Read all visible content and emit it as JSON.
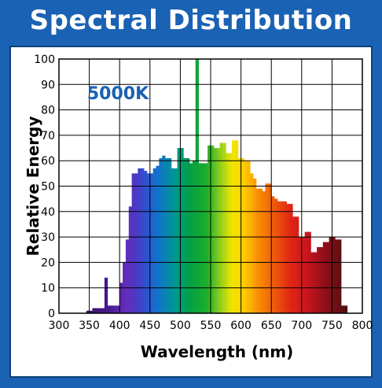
{
  "header": {
    "title": "Spectral Distribution"
  },
  "colors": {
    "frame": "#1a62b3",
    "annotation": "#1a62b3",
    "grid": "#000000"
  },
  "chart_data": {
    "type": "bar",
    "title": "Spectral Distribution",
    "annotation": "5000K",
    "xlabel": "Wavelength (nm)",
    "ylabel": "Relative Energy",
    "xlim": [
      300,
      800
    ],
    "ylim": [
      0,
      100
    ],
    "xticks": [
      300,
      350,
      400,
      450,
      500,
      550,
      600,
      650,
      700,
      750,
      800
    ],
    "yticks": [
      0,
      10,
      20,
      30,
      40,
      50,
      60,
      70,
      80,
      90,
      100
    ],
    "grid": true,
    "bin_width_nm": 5,
    "x": [
      345,
      350,
      355,
      360,
      365,
      370,
      375,
      380,
      385,
      390,
      395,
      400,
      405,
      410,
      415,
      420,
      425,
      430,
      435,
      440,
      445,
      450,
      455,
      460,
      465,
      470,
      475,
      480,
      485,
      490,
      495,
      500,
      505,
      510,
      515,
      520,
      525,
      530,
      535,
      540,
      545,
      550,
      555,
      560,
      565,
      570,
      575,
      580,
      585,
      590,
      595,
      600,
      605,
      610,
      615,
      620,
      625,
      630,
      635,
      640,
      645,
      650,
      655,
      660,
      665,
      670,
      675,
      680,
      685,
      690,
      695,
      700,
      705,
      710,
      715,
      720,
      725,
      730,
      735,
      740,
      745,
      750,
      755,
      760,
      765,
      770,
      775,
      780
    ],
    "values": [
      1,
      1,
      2,
      2,
      2,
      2,
      14,
      3,
      3,
      3,
      3,
      12,
      20,
      29,
      42,
      55,
      55,
      57,
      57,
      56,
      55,
      55,
      57,
      58,
      61,
      62,
      61,
      61,
      57,
      57,
      65,
      65,
      61,
      61,
      59,
      60,
      100,
      59,
      59,
      59,
      66,
      66,
      65,
      65,
      67,
      67,
      63,
      63,
      68,
      68,
      61,
      61,
      60,
      60,
      55,
      53,
      49,
      49,
      48,
      51,
      51,
      46,
      45,
      44,
      44,
      44,
      43,
      43,
      38,
      38,
      30,
      30,
      32,
      32,
      24,
      24,
      26,
      26,
      28,
      28,
      30,
      30,
      29,
      29,
      3,
      3,
      0,
      0
    ]
  }
}
